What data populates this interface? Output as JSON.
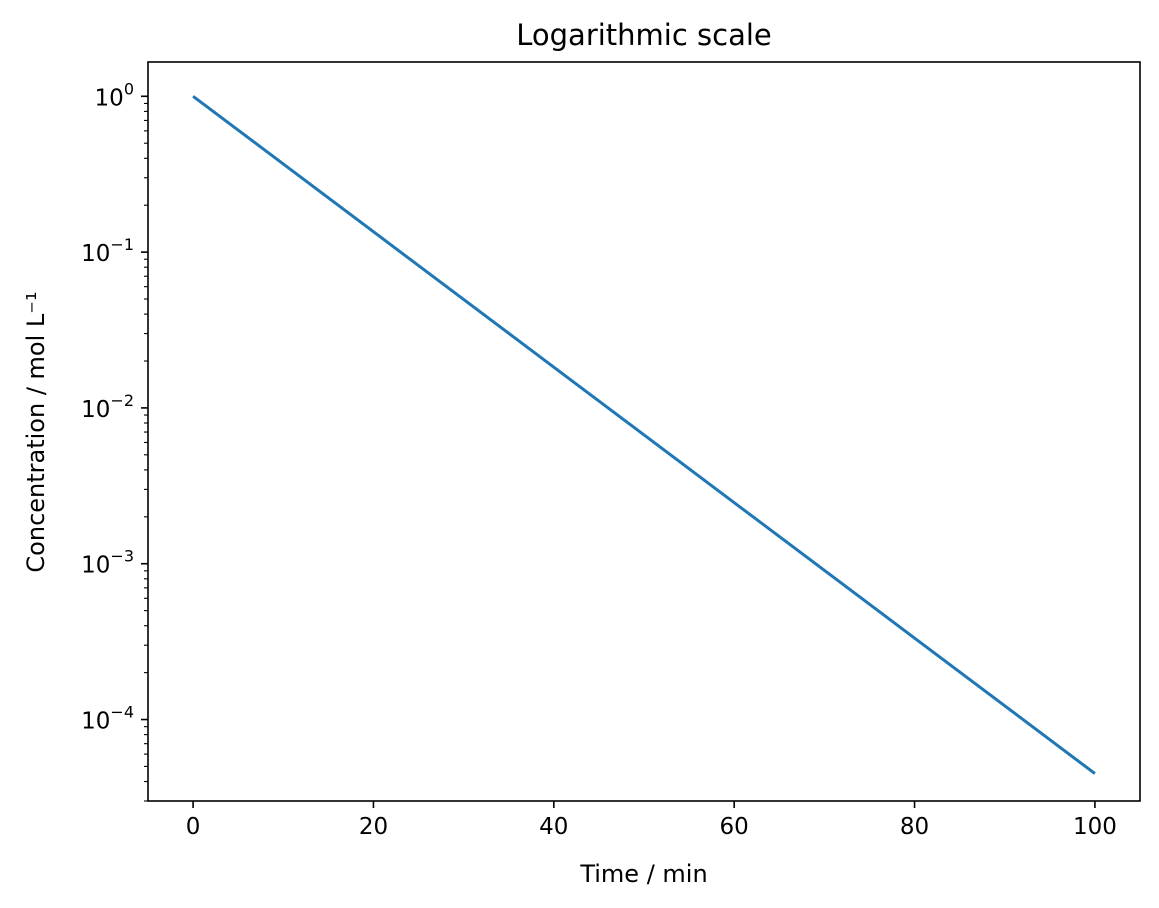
{
  "chart_data": {
    "type": "line",
    "title": "Logarithmic scale",
    "xlabel": "Time / min",
    "ylabel": "Concentration / mol L⁻¹",
    "xscale": "linear",
    "yscale": "log",
    "xlim": [
      -5,
      105
    ],
    "ylim": [
      3e-05,
      1.66
    ],
    "xticks": [
      0,
      20,
      40,
      60,
      80,
      100
    ],
    "xtick_labels": [
      "0",
      "20",
      "40",
      "60",
      "80",
      "100"
    ],
    "yticks": [
      1,
      0.1,
      0.01,
      0.001,
      0.0001
    ],
    "ytick_labels": [
      {
        "base": "10",
        "exp": "0"
      },
      {
        "base": "10",
        "exp": "−1"
      },
      {
        "base": "10",
        "exp": "−2"
      },
      {
        "base": "10",
        "exp": "−3"
      },
      {
        "base": "10",
        "exp": "−4"
      }
    ],
    "grid": false,
    "legend": "none",
    "series": [
      {
        "color": "#1f77b4",
        "x": [
          0,
          100
        ],
        "y": [
          1.0,
          4.5e-05
        ]
      }
    ]
  }
}
